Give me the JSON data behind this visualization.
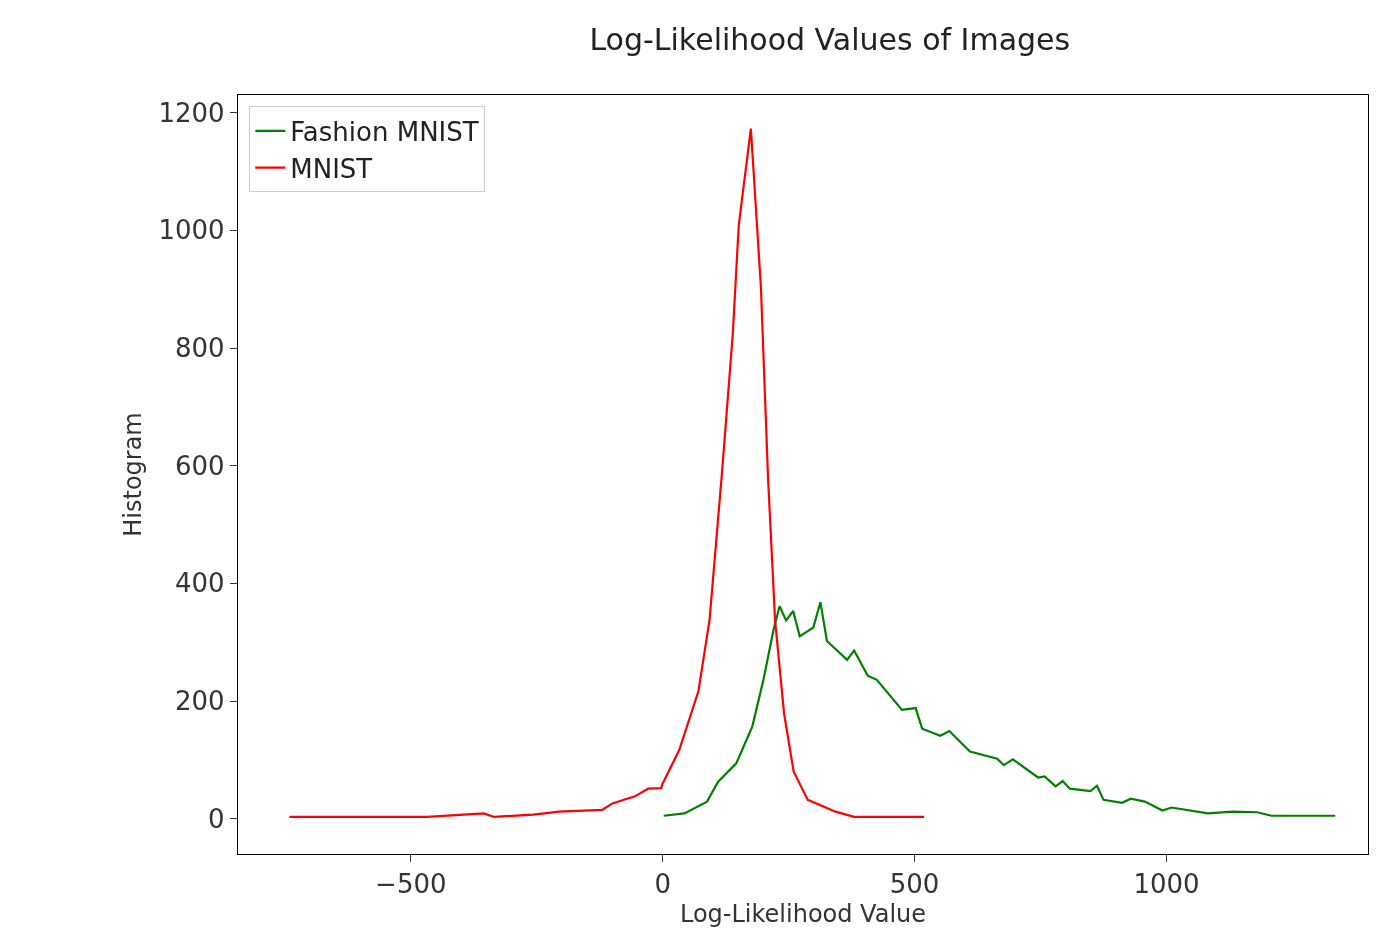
{
  "chart_data": {
    "type": "line",
    "title": "Log-Likelihood Values of Images",
    "xlabel": "Log-Likelihood Value",
    "ylabel": "Histogram",
    "xlim": [
      -843,
      1400
    ],
    "xticks": [
      {
        "value": -500,
        "label": "−500"
      },
      0,
      500,
      1000
    ],
    "ylim": [
      -60,
      1230
    ],
    "yticks": [
      0,
      200,
      400,
      600,
      800,
      1000,
      1200
    ],
    "legend": "top left",
    "marker": "none",
    "line_style": "solid",
    "series": [
      {
        "name": "Fashion MNIST",
        "color": "#008000",
        "x": [
          2,
          43,
          88,
          110,
          146,
          178,
          200,
          220,
          232,
          245,
          259,
          272,
          299,
          313,
          326,
          366,
          380,
          407,
          425,
          475,
          502,
          515,
          551,
          569,
          610,
          664,
          677,
          695,
          745,
          758,
          780,
          794,
          808,
          849,
          862,
          875,
          912,
          929,
          957,
          992,
          1010,
          1082,
          1131,
          1180,
          1208,
          1335
        ],
        "values": [
          5,
          9,
          29,
          63,
          94,
          157,
          236,
          321,
          361,
          337,
          353,
          310,
          325,
          368,
          302,
          270,
          286,
          243,
          236,
          185,
          188,
          153,
          141,
          149,
          114,
          102,
          91,
          101,
          70,
          72,
          55,
          64,
          51,
          47,
          56,
          32,
          27,
          34,
          29,
          14,
          19,
          9,
          12,
          11,
          5,
          5
        ]
      },
      {
        "name": "MNIST",
        "color": "#ff0000",
        "x": [
          -741,
          -467,
          -355,
          -335,
          -257,
          -206,
          -120,
          -100,
          -55,
          -29,
          -3,
          0,
          33,
          71,
          93,
          117,
          139,
          151,
          175,
          195,
          209,
          223,
          241,
          260,
          288,
          343,
          380,
          519
        ],
        "values": [
          3,
          3,
          9,
          3,
          7,
          12,
          15,
          26,
          38,
          51,
          52,
          60,
          117,
          217,
          338,
          581,
          822,
          1009,
          1173,
          903,
          581,
          338,
          178,
          80,
          32,
          12,
          3,
          3
        ]
      }
    ]
  }
}
